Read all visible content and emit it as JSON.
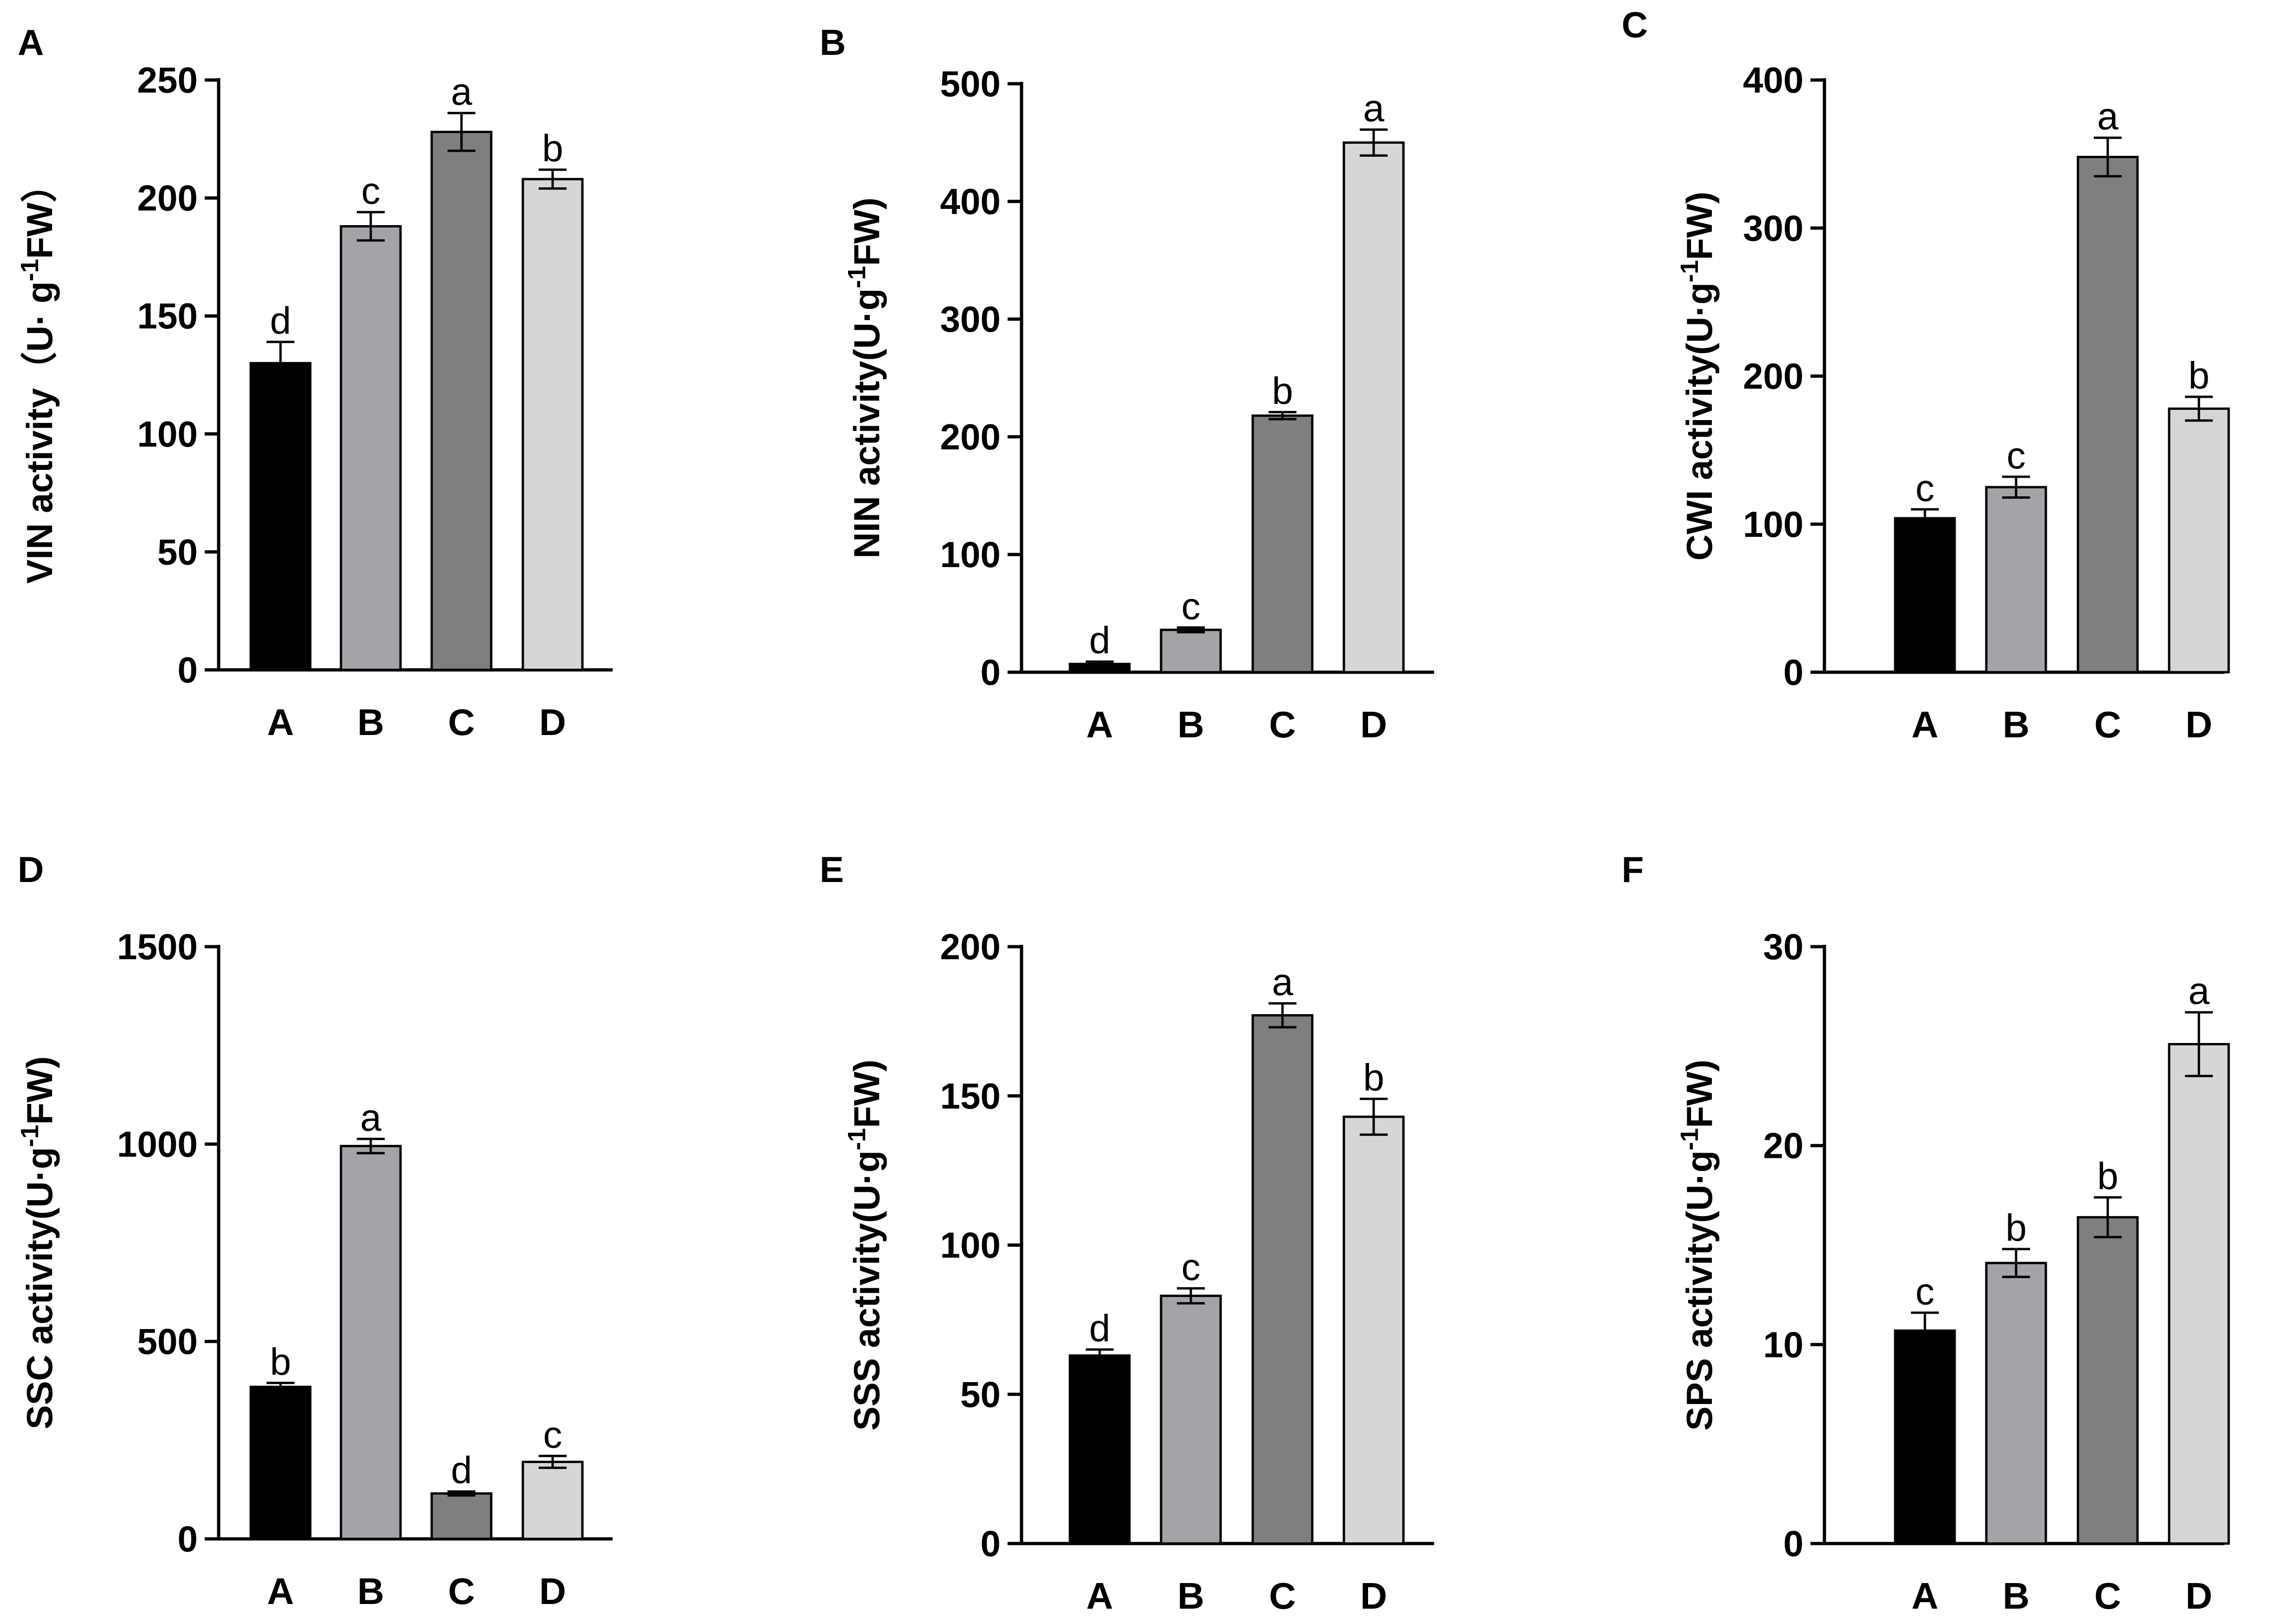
{
  "chart_data": [
    {
      "type": "bar",
      "panel": "A",
      "categories": [
        "A",
        "B",
        "C",
        "D"
      ],
      "values": [
        130,
        188,
        228,
        208
      ],
      "errors": [
        9,
        6,
        8,
        4
      ],
      "letters": [
        "d",
        "c",
        "a",
        "b"
      ],
      "colors": [
        "#000000",
        "#a3a3a8",
        "#7f7f7f",
        "#d6d6d6"
      ],
      "ylabel_main": "VIN activity（U· g",
      "ylabel_sup": "-1",
      "ylabel_tail": "FW）",
      "ylim": [
        0,
        250
      ],
      "yticks": [
        0,
        50,
        100,
        150,
        200,
        250
      ]
    },
    {
      "type": "bar",
      "panel": "B",
      "categories": [
        "A",
        "B",
        "C",
        "D"
      ],
      "values": [
        7,
        36,
        218,
        450
      ],
      "errors": [
        2,
        2,
        3,
        11
      ],
      "letters": [
        "d",
        "c",
        "b",
        "a"
      ],
      "colors": [
        "#000000",
        "#a3a3a8",
        "#7f7f7f",
        "#d6d6d6"
      ],
      "ylabel_main": "NIN activity(U·g",
      "ylabel_sup": "-1",
      "ylabel_tail": "FW)",
      "ylim": [
        0,
        500
      ],
      "yticks": [
        0,
        100,
        200,
        300,
        400,
        500
      ]
    },
    {
      "type": "bar",
      "panel": "C",
      "categories": [
        "A",
        "B",
        "C",
        "D"
      ],
      "values": [
        104,
        125,
        348,
        178
      ],
      "errors": [
        6,
        7,
        13,
        8
      ],
      "letters": [
        "c",
        "c",
        "a",
        "b"
      ],
      "colors": [
        "#000000",
        "#a3a3a8",
        "#7f7f7f",
        "#d6d6d6"
      ],
      "ylabel_main": "CWI activity(U·g",
      "ylabel_sup": "-1",
      "ylabel_tail": "FW)",
      "ylim": [
        0,
        400
      ],
      "yticks": [
        0,
        100,
        200,
        300,
        400
      ]
    },
    {
      "type": "bar",
      "panel": "D",
      "categories": [
        "A",
        "B",
        "C",
        "D"
      ],
      "values": [
        385,
        995,
        115,
        195
      ],
      "errors": [
        10,
        18,
        5,
        15
      ],
      "letters": [
        "b",
        "a",
        "d",
        "c"
      ],
      "colors": [
        "#000000",
        "#a3a3a8",
        "#7f7f7f",
        "#d6d6d6"
      ],
      "ylabel_main": "SSC activity(U·g",
      "ylabel_sup": "-1",
      "ylabel_tail": "FW)",
      "ylim": [
        0,
        1500
      ],
      "yticks": [
        0,
        500,
        1000,
        1500
      ]
    },
    {
      "type": "bar",
      "panel": "E",
      "categories": [
        "A",
        "B",
        "C",
        "D"
      ],
      "values": [
        63,
        83,
        177,
        143
      ],
      "errors": [
        2,
        2.5,
        4,
        6
      ],
      "letters": [
        "d",
        "c",
        "a",
        "b"
      ],
      "colors": [
        "#000000",
        "#a3a3a8",
        "#7f7f7f",
        "#d6d6d6"
      ],
      "ylabel_main": "SSS activity(U·g",
      "ylabel_sup": "-1",
      "ylabel_tail": "FW)",
      "ylim": [
        0,
        200
      ],
      "yticks": [
        0,
        50,
        100,
        150,
        200
      ]
    },
    {
      "type": "bar",
      "panel": "F",
      "categories": [
        "A",
        "B",
        "C",
        "D"
      ],
      "values": [
        10.7,
        14.1,
        16.4,
        25.1
      ],
      "errors": [
        0.9,
        0.7,
        1.0,
        1.6
      ],
      "letters": [
        "c",
        "b",
        "b",
        "a"
      ],
      "colors": [
        "#000000",
        "#a3a3a8",
        "#7f7f7f",
        "#d6d6d6"
      ],
      "ylabel_main": "SPS activity(U·g",
      "ylabel_sup": "-1",
      "ylabel_tail": "FW)",
      "ylim": [
        0,
        30
      ],
      "yticks": [
        0,
        10,
        20,
        30
      ]
    }
  ]
}
